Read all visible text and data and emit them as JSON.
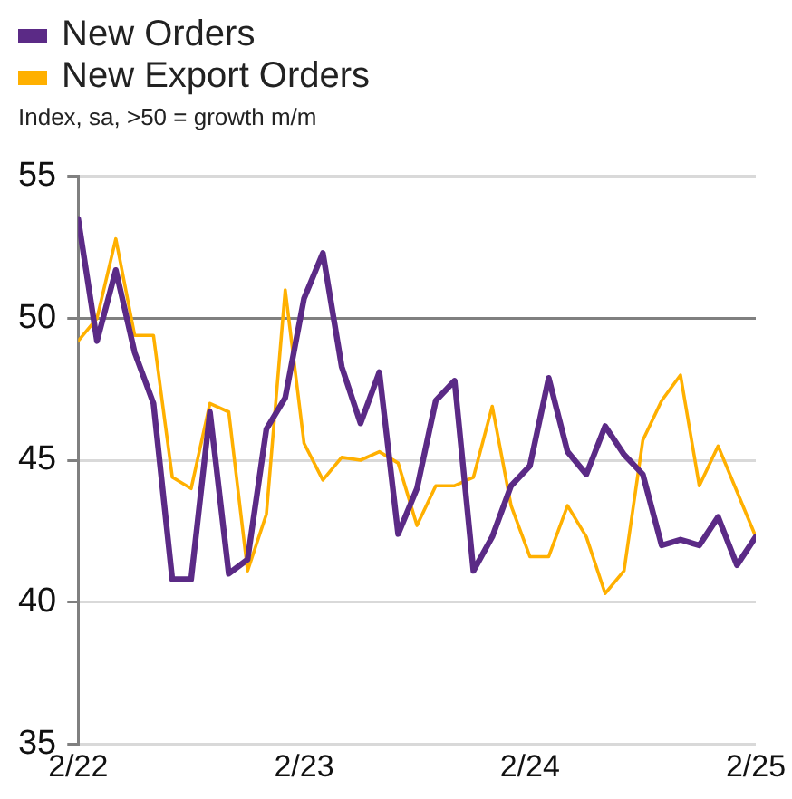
{
  "chart_data": {
    "type": "line",
    "subtitle": "Index, sa, >50 = growth m/m",
    "x": [
      "2022-02",
      "2022-03",
      "2022-04",
      "2022-05",
      "2022-06",
      "2022-07",
      "2022-08",
      "2022-09",
      "2022-10",
      "2022-11",
      "2022-12",
      "2023-01",
      "2023-02",
      "2023-03",
      "2023-04",
      "2023-05",
      "2023-06",
      "2023-07",
      "2023-08",
      "2023-09",
      "2023-10",
      "2023-11",
      "2023-12",
      "2024-01",
      "2024-02",
      "2024-03",
      "2024-04",
      "2024-05",
      "2024-06",
      "2024-07",
      "2024-08",
      "2024-09",
      "2024-10",
      "2024-11",
      "2024-12",
      "2025-01",
      "2025-02"
    ],
    "series": [
      {
        "name": "New Orders",
        "color": "#5b2a86",
        "values": [
          53.5,
          49.2,
          51.7,
          48.8,
          47.0,
          40.8,
          40.8,
          46.7,
          41.0,
          41.5,
          46.1,
          47.2,
          50.7,
          52.3,
          48.3,
          46.3,
          48.1,
          42.4,
          44.0,
          47.1,
          47.8,
          41.1,
          42.3,
          44.1,
          44.8,
          47.9,
          45.3,
          44.5,
          46.2,
          45.2,
          44.5,
          42.0,
          42.2,
          42.0,
          43.0,
          41.3,
          42.3
        ]
      },
      {
        "name": "New Export Orders",
        "color": "#ffb000",
        "values": [
          49.2,
          50.0,
          52.8,
          49.4,
          49.4,
          44.4,
          44.0,
          47.0,
          46.7,
          41.1,
          43.1,
          51.0,
          45.6,
          44.3,
          45.1,
          45.0,
          45.3,
          44.9,
          42.7,
          44.1,
          44.1,
          44.4,
          46.9,
          43.4,
          41.6,
          41.6,
          43.4,
          42.3,
          40.3,
          41.1,
          45.7,
          47.1,
          48.0,
          44.1,
          45.5,
          43.9,
          42.3
        ]
      }
    ],
    "xlim": [
      "2022-02",
      "2025-02"
    ],
    "xticks": [
      {
        "value": "2022-02",
        "label": "2/22"
      },
      {
        "value": "2023-02",
        "label": "2/23"
      },
      {
        "value": "2024-02",
        "label": "2/24"
      },
      {
        "value": "2025-02",
        "label": "2/25"
      }
    ],
    "ylim": [
      35,
      55
    ],
    "yticks": [
      35,
      40,
      45,
      50,
      55
    ],
    "ref_lines": [
      {
        "axis": "y",
        "value": 50,
        "color": "#808080"
      }
    ],
    "grid": "y",
    "legend": "top left"
  }
}
